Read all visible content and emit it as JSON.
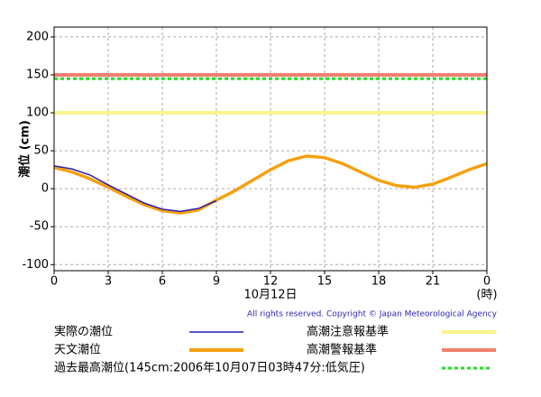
{
  "chart_data": {
    "type": "line",
    "y_label": "潮位 (cm)",
    "x_label": "(時)",
    "date_label": "10月12日",
    "copyright": "All rights reserved. Copyright © Japan Meteorological Agency",
    "x": [
      0,
      1,
      2,
      3,
      4,
      5,
      6,
      7,
      8,
      9,
      10,
      11,
      12,
      13,
      14,
      15,
      16,
      17,
      18,
      19,
      20,
      21,
      22,
      23,
      24
    ],
    "xlim": [
      0,
      24
    ],
    "xticks": [
      0,
      3,
      6,
      9,
      12,
      15,
      18,
      21,
      {
        "value": 24,
        "label": "0"
      }
    ],
    "ylim": [
      -108,
      213
    ],
    "yticks": [
      -100,
      -50,
      0,
      50,
      100,
      150,
      200
    ],
    "grid": true,
    "series": [
      {
        "name": "実際の潮位",
        "color": "#2a1fb0",
        "values": [
          30,
          26,
          18,
          5,
          -7,
          -19,
          -27,
          -30,
          -26,
          -16,
          null,
          null,
          null,
          null,
          null,
          null,
          null,
          null,
          null,
          null,
          null,
          null,
          null,
          null,
          null
        ]
      },
      {
        "name": "天文潮位",
        "color": "#f5a00f",
        "values": [
          28,
          22,
          13,
          2,
          -10,
          -21,
          -29,
          -32,
          -28,
          -15,
          -3,
          11,
          25,
          37,
          43,
          41,
          33,
          22,
          11,
          4,
          2,
          6,
          15,
          25,
          33
        ]
      }
    ],
    "reference_lines": [
      {
        "name": "高潮注意報基準",
        "color": "#f7f58c",
        "value": 100,
        "dashed": false
      },
      {
        "name": "高潮警報基準",
        "color": "#f08070",
        "value": 150,
        "dashed": false
      },
      {
        "name": "過去最高潮位(145cm:2006年10月07日03時47分:低気圧)",
        "color": "#22dd22",
        "value": 145,
        "dashed": true
      }
    ]
  }
}
